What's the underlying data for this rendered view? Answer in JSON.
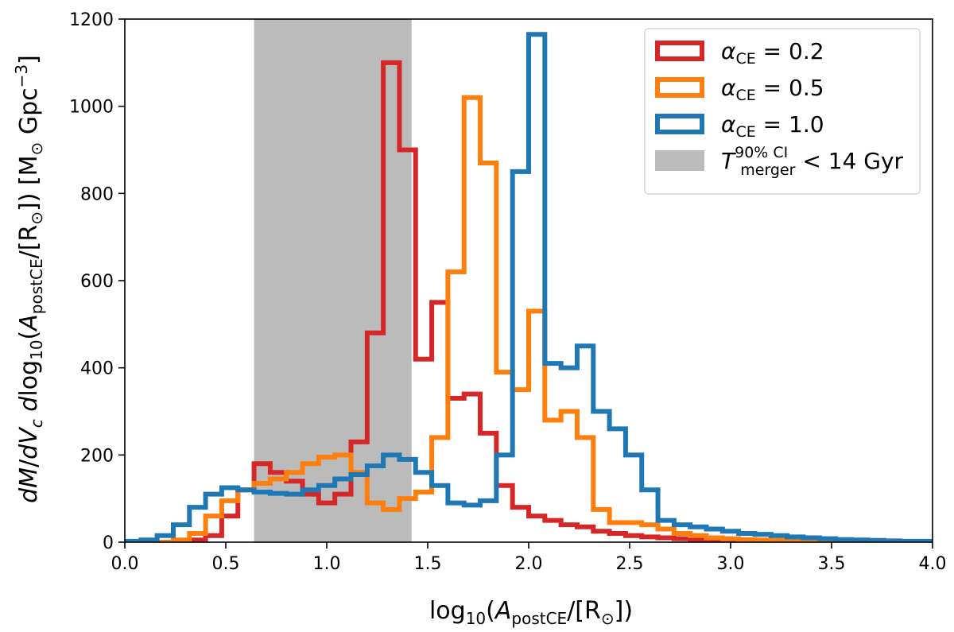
{
  "chart_data": {
    "type": "histogram-step",
    "xlabel": "log₁₀(A_postCE/[R⊙])",
    "ylabel": "dM/dV_c dlog₁₀(A_postCE/[R⊙]) [M⊙ Gpc⁻³]",
    "xlim": [
      0.0,
      4.0
    ],
    "ylim": [
      0,
      1200
    ],
    "xticks": [
      "0.0",
      "0.5",
      "1.0",
      "1.5",
      "2.0",
      "2.5",
      "3.0",
      "3.5",
      "4.0"
    ],
    "yticks": [
      "0",
      "200",
      "400",
      "600",
      "800",
      "1000",
      "1200"
    ],
    "shaded_region": {
      "x0": 0.64,
      "x1": 1.42,
      "color": "#bbbbbb",
      "label": "T_merger^90% CI < 14 Gyr"
    },
    "legend_position": "top-right",
    "bin_edges": [
      0.0,
      0.08,
      0.16,
      0.24,
      0.32,
      0.4,
      0.48,
      0.56,
      0.64,
      0.72,
      0.8,
      0.88,
      0.96,
      1.04,
      1.12,
      1.2,
      1.28,
      1.36,
      1.44,
      1.52,
      1.6,
      1.68,
      1.76,
      1.84,
      1.92,
      2.0,
      2.08,
      2.16,
      2.24,
      2.32,
      2.4,
      2.48,
      2.56,
      2.64,
      2.72,
      2.8,
      2.88,
      2.96,
      3.04,
      3.12,
      3.2,
      3.28,
      3.36,
      3.44,
      3.52,
      3.6,
      3.68,
      3.76,
      3.84,
      3.92,
      4.0
    ],
    "series": [
      {
        "name": "α_CE = 0.2",
        "color": "#d62728",
        "values": [
          0,
          0,
          0,
          2,
          5,
          15,
          60,
          120,
          180,
          160,
          140,
          110,
          90,
          110,
          230,
          480,
          1100,
          900,
          420,
          550,
          330,
          340,
          250,
          130,
          80,
          60,
          50,
          40,
          35,
          25,
          20,
          15,
          12,
          10,
          8,
          6,
          5,
          4,
          3,
          3,
          2,
          2,
          2,
          1,
          1,
          1,
          1,
          0,
          0,
          0
        ]
      },
      {
        "name": "α_CE = 0.5",
        "color": "#ff7f0e",
        "values": [
          0,
          0,
          0,
          5,
          20,
          60,
          95,
          120,
          135,
          145,
          160,
          180,
          195,
          200,
          160,
          90,
          75,
          100,
          115,
          240,
          620,
          1020,
          870,
          390,
          350,
          530,
          280,
          300,
          240,
          75,
          45,
          45,
          40,
          30,
          20,
          15,
          10,
          8,
          6,
          5,
          4,
          3,
          2,
          2,
          1,
          1,
          1,
          0,
          0,
          0
        ]
      },
      {
        "name": "α_CE = 1.0",
        "color": "#1f77b4",
        "values": [
          2,
          5,
          15,
          40,
          80,
          110,
          125,
          120,
          115,
          112,
          110,
          120,
          130,
          145,
          155,
          175,
          200,
          190,
          160,
          130,
          90,
          85,
          95,
          200,
          850,
          1165,
          410,
          400,
          450,
          300,
          260,
          200,
          120,
          50,
          40,
          35,
          30,
          25,
          20,
          18,
          15,
          12,
          10,
          8,
          6,
          5,
          4,
          3,
          2,
          2
        ]
      }
    ]
  },
  "legend": {
    "items": [
      {
        "label": "α_CE = 0.2",
        "color": "#d62728",
        "kind": "outline"
      },
      {
        "label": "α_CE = 0.5",
        "color": "#ff7f0e",
        "kind": "outline"
      },
      {
        "label": "α_CE = 1.0",
        "color": "#1f77b4",
        "kind": "outline"
      },
      {
        "label": "T_merger^90% CI < 14 Gyr",
        "color": "#bbbbbb",
        "kind": "filled"
      }
    ]
  }
}
